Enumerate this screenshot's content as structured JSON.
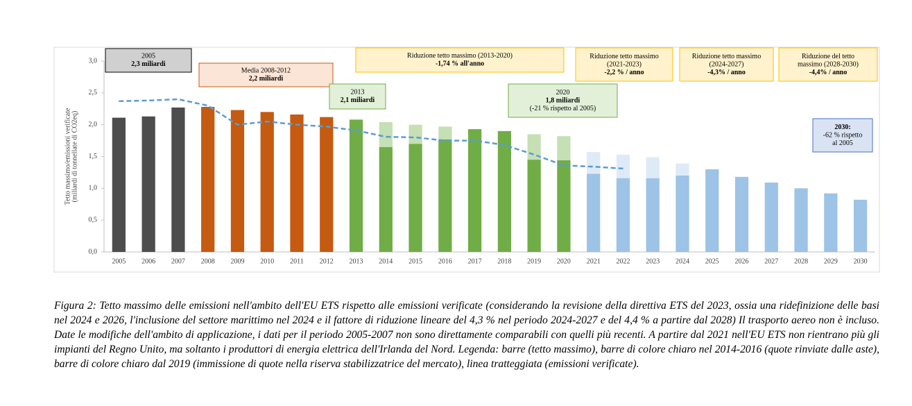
{
  "chart_data": {
    "type": "bar",
    "y_label": [
      "Tetto massimo/emissioni verificate",
      "(miliardi di tonnellate di CO2eq)"
    ],
    "categories": [
      "2005",
      "2006",
      "2007",
      "2008",
      "2009",
      "2010",
      "2011",
      "2012",
      "2013",
      "2014",
      "2015",
      "2016",
      "2017",
      "2018",
      "2019",
      "2020",
      "2021",
      "2022",
      "2023",
      "2024",
      "2025",
      "2026",
      "2027",
      "2028",
      "2029",
      "2030"
    ],
    "series": [
      {
        "values": [
          2.11,
          2.13,
          2.27,
          2.28,
          2.23,
          2.2,
          2.16,
          2.12,
          2.08,
          1.65,
          1.7,
          1.77,
          1.93,
          1.9,
          1.45,
          1.44,
          1.23,
          1.16,
          1.16,
          1.2,
          1.3,
          1.18,
          1.09,
          1.0,
          0.92,
          0.82
        ],
        "colors": [
          "#4d4d4d",
          "#4d4d4d",
          "#4d4d4d",
          "#c55a11",
          "#c55a11",
          "#c55a11",
          "#c55a11",
          "#c55a11",
          "#70ad47",
          "#70ad47",
          "#70ad47",
          "#70ad47",
          "#70ad47",
          "#70ad47",
          "#70ad47",
          "#70ad47",
          "#9dc3e6",
          "#9dc3e6",
          "#9dc3e6",
          "#9dc3e6",
          "#9dc3e6",
          "#9dc3e6",
          "#9dc3e6",
          "#9dc3e6",
          "#9dc3e6",
          "#9dc3e6"
        ]
      },
      {
        "values": [
          null,
          null,
          null,
          null,
          null,
          null,
          null,
          null,
          null,
          0.39,
          0.3,
          0.2,
          null,
          null,
          0.4,
          0.38,
          0.34,
          0.37,
          0.33,
          0.19,
          null,
          null,
          null,
          null,
          null,
          null
        ],
        "colors": [
          "#c5e0b4",
          "#c5e0b4",
          "#c5e0b4",
          "#c5e0b4",
          "#c5e0b4",
          "#c5e0b4",
          "#c5e0b4",
          "#c5e0b4",
          "#c5e0b4",
          "#c5e0b4",
          "#c5e0b4",
          "#c5e0b4",
          "#c5e0b4",
          "#c5e0b4",
          "#c5e0b4",
          "#c5e0b4",
          "#deebf7",
          "#deebf7",
          "#deebf7",
          "#deebf7",
          "#deebf7",
          "#deebf7",
          "#deebf7",
          "#deebf7",
          "#deebf7",
          "#deebf7"
        ]
      },
      {
        "type": "line",
        "dashed": true,
        "color": "#5b9bd5",
        "values": [
          2.37,
          2.38,
          2.4,
          2.3,
          2.0,
          2.05,
          2.0,
          1.97,
          1.91,
          1.81,
          1.8,
          1.75,
          1.75,
          1.68,
          1.53,
          1.36,
          1.34,
          1.31,
          null,
          null,
          null,
          null,
          null,
          null,
          null,
          null
        ]
      }
    ],
    "ylim": [
      0,
      3
    ],
    "yticks": [
      {
        "value": 0,
        "label": "0,0"
      },
      {
        "value": 0.5,
        "label": "0,5"
      },
      {
        "value": 1,
        "label": "1,0"
      },
      {
        "value": 1.5,
        "label": "1,5"
      },
      {
        "value": 2,
        "label": "2,0"
      },
      {
        "value": 2.5,
        "label": "2,5"
      },
      {
        "value": 3,
        "label": "3,0"
      }
    ],
    "annotations": [
      {
        "lines": [
          "2005",
          "2,3 miliardi"
        ],
        "fill": "#d0d0d0",
        "border": "#000000"
      },
      {
        "lines": [
          "Media 2008-2012",
          "2,2 miliardi"
        ],
        "fill": "#fbe5d6",
        "border": "#c55a11"
      },
      {
        "lines": [
          "2013",
          "2,1 miliardi"
        ],
        "fill": "#e2f0d9",
        "border": "#70ad47"
      },
      {
        "lines": [
          "Riduzione tetto massimo (2013-2020)",
          "-1,74 % all'anno"
        ],
        "fill": "#fff2cc",
        "border": "#ffc000"
      },
      {
        "lines": [
          "2020",
          "1,8 miliardi",
          "(-21 % rispetto al 2005)"
        ],
        "fill": "#e2f0d9",
        "border": "#70ad47"
      },
      {
        "lines": [
          "Riduzione tetto massimo",
          "(2021-2023)",
          "-2,2 % / anno"
        ],
        "fill": "#fff2cc",
        "border": "#ffc000"
      },
      {
        "lines": [
          "Riduzione tetto massimo",
          "(2024-2027)",
          "-4,3% / anno"
        ],
        "fill": "#fff2cc",
        "border": "#ffc000"
      },
      {
        "lines": [
          "Riduzione del tetto",
          "massimo (2028-2030)",
          "-4,4% / anno"
        ],
        "fill": "#fff2cc",
        "border": "#ffc000"
      },
      {
        "lines": [
          "2030:",
          "-62 % rispetto",
          "al 2005"
        ],
        "fill": "#dae3f3",
        "border": "#4472c4"
      }
    ]
  },
  "caption": "Figura 2: Tetto massimo delle emissioni nell'ambito dell'EU ETS rispetto alle emissioni verificate (considerando la revisione della direttiva ETS del 2023, ossia una ridefinizione delle basi nel 2024 e 2026, l'inclusione del settore marittimo nel 2024 e il fattore di riduzione lineare del 4,3 % nel periodo 2024-2027 e del 4,4 % a partire dal 2028) Il trasporto aereo non è incluso. Date le modifiche dell'ambito di applicazione, i dati per il periodo 2005-2007 non sono direttamente comparabili con quelli più recenti. A partire dal 2021 nell'EU ETS non rientrano più gli impianti del Regno Unito, ma soltanto i produttori di energia elettrica dell'Irlanda del Nord. Legenda: barre (tetto massimo), barre di colore chiaro nel 2014-2016 (quote rinviate dalle aste), barre di colore chiaro dal 2019 (immissione di quote nella riserva stabilizzatrice del mercato), linea tratteggiata (emissioni verificate)."
}
